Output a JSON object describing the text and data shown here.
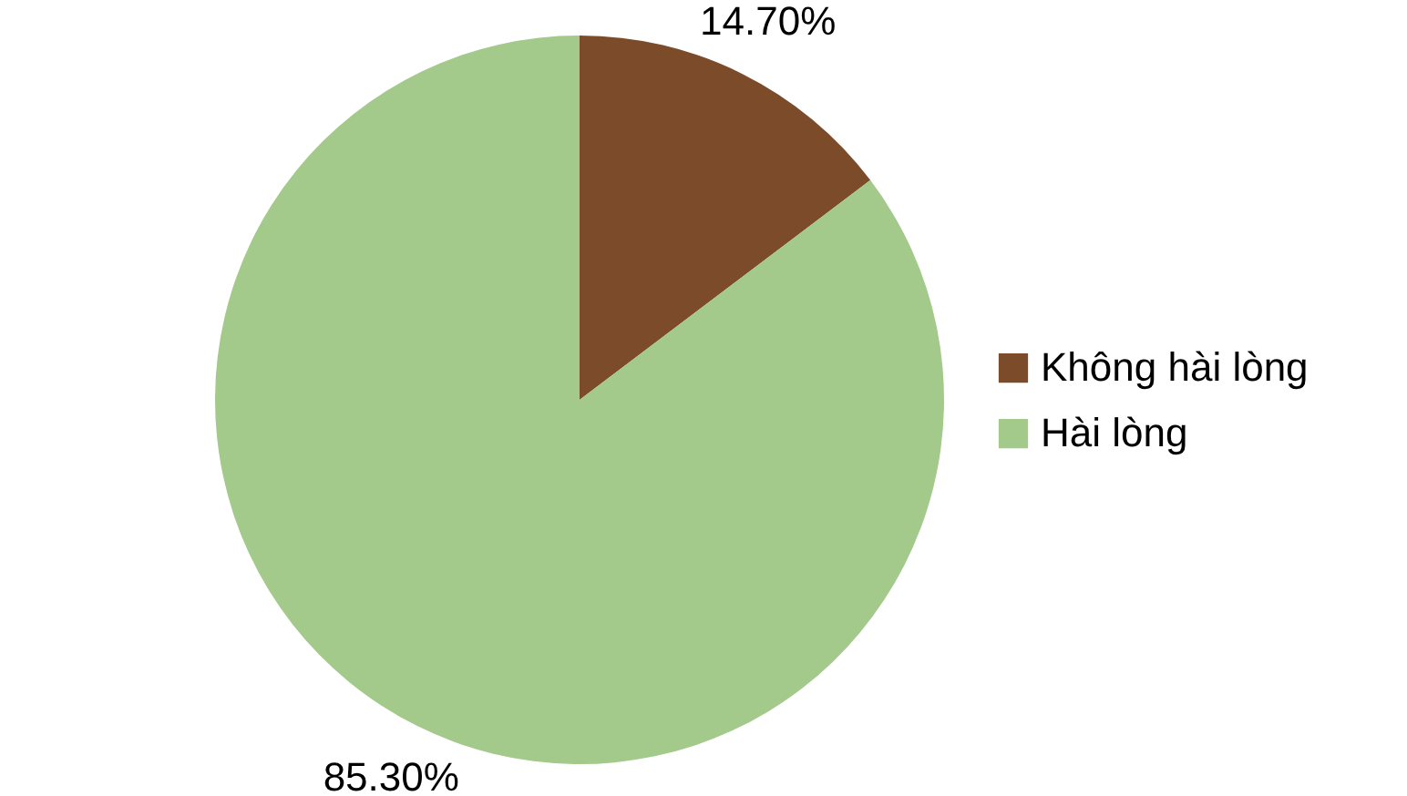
{
  "chart_data": {
    "type": "pie",
    "categories": [
      "Không hài lòng",
      "Hài lòng"
    ],
    "values": [
      14.7,
      85.3
    ],
    "value_labels": [
      "14.70%",
      "85.30%"
    ],
    "colors": [
      "#7b4b2a",
      "#a3c98b"
    ],
    "legend": "right"
  }
}
